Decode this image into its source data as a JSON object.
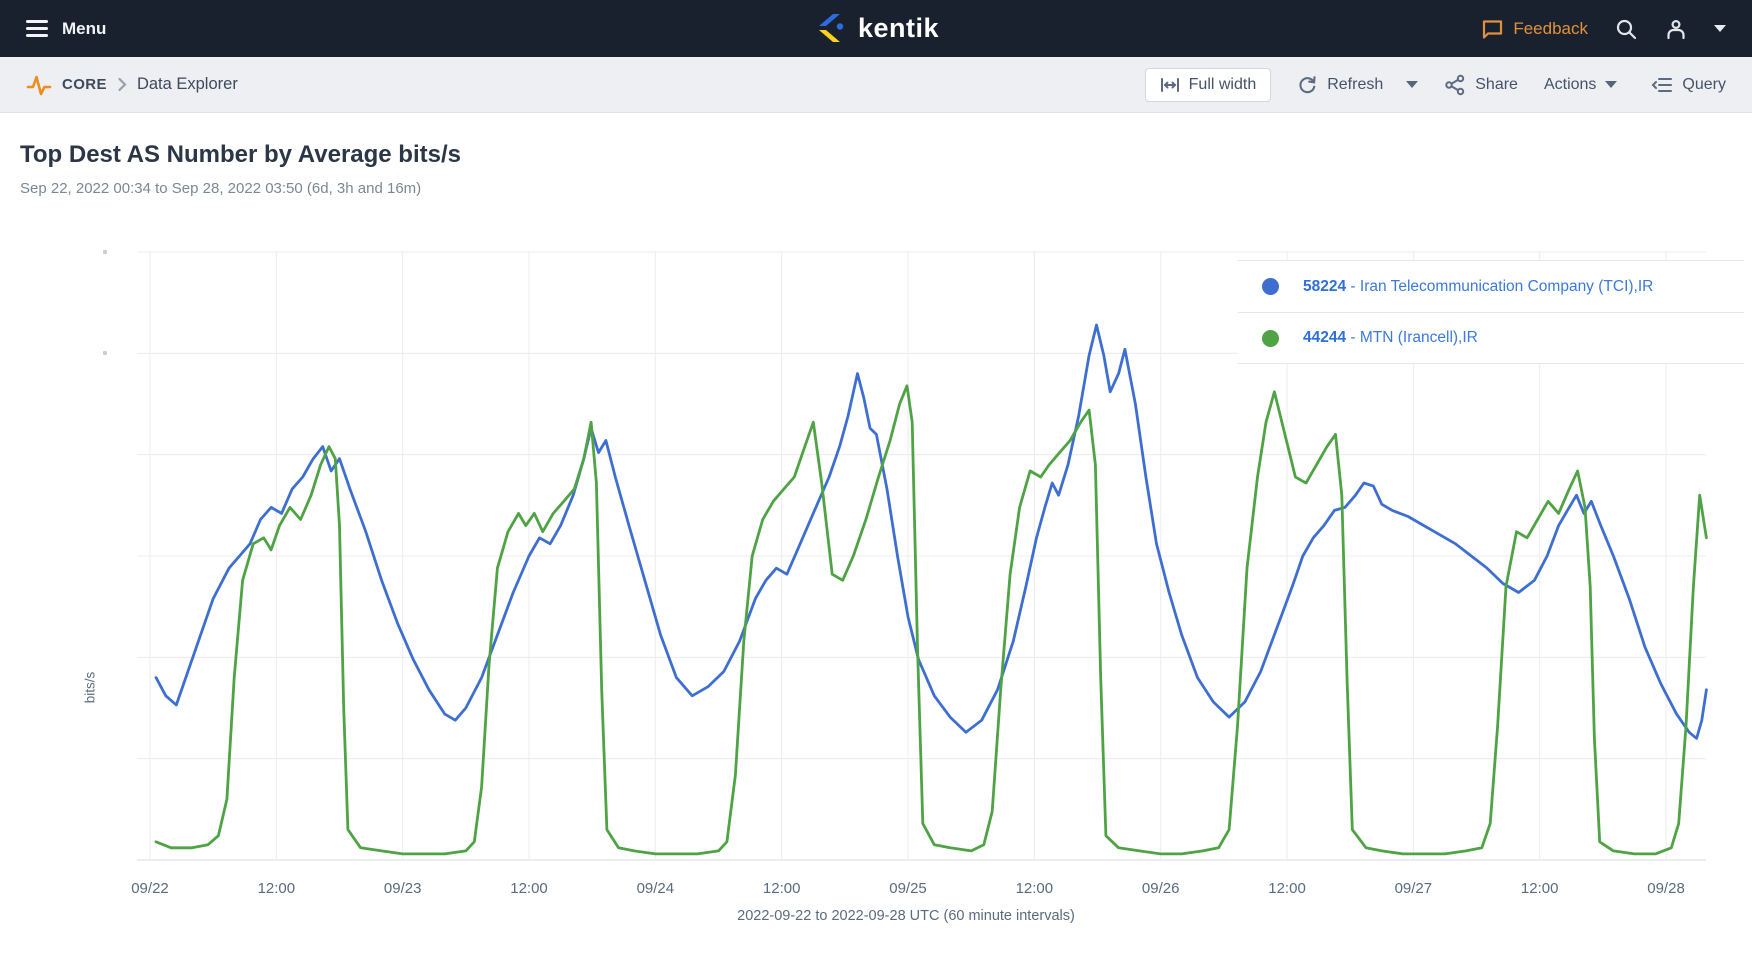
{
  "nav": {
    "menu_label": "Menu",
    "brand": "kentik",
    "feedback_label": "Feedback"
  },
  "toolbar": {
    "breadcrumb_section": "CORE",
    "breadcrumb_page": "Data Explorer",
    "full_width_label": "Full width",
    "refresh_label": "Refresh",
    "share_label": "Share",
    "actions_label": "Actions",
    "query_label": "Query"
  },
  "page": {
    "title": "Top Dest AS Number by Average bits/s",
    "subtitle": "Sep 22, 2022 00:34 to Sep 28, 2022 03:50 (6d, 3h and 16m)"
  },
  "icons": {
    "menu-icon": "hamburger ≡",
    "feedback-bubble-icon": "speech bubble",
    "search-icon": "magnifier",
    "user-icon": "person silhouette",
    "caret-down-icon": "▾",
    "pulse-icon": "orange activity zigzag",
    "chevron-right-icon": "›",
    "full-width-icon": "|↔|",
    "refresh-icon": "circular arrow",
    "share-icon": "share nodes",
    "query-icon": "outdent list lines"
  },
  "colors": {
    "nav_bg": "#1a212e",
    "toolbar_bg": "#edeff2",
    "accent_orange": "#e0913c",
    "pulse_orange": "#ef8c1f",
    "series_blue": "#3e6fd0",
    "series_green": "#4fa345",
    "legend_link_blue": "#3b79df",
    "grid_line": "#ececee",
    "axis_text": "#5a6b7f",
    "logo_blue": "#2d6bdf",
    "logo_yellow": "#ffd21e"
  },
  "chart_data": {
    "type": "line",
    "title": "Top Dest AS Number by Average bits/s",
    "xlabel": "2022-09-22 to 2022-09-28 UTC (60 minute intervals)",
    "ylabel": "bits/s",
    "x_unit": "hours since 2022-09-22 00:00 UTC",
    "x_range": [
      0.57,
      147.83
    ],
    "y_unit": "relative traffic level, percent of chart height (y-axis tick values not legible in source image)",
    "y_range": [
      0,
      100
    ],
    "grid": true,
    "legend_position": "top-right",
    "x_tick_hours": [
      0,
      12,
      24,
      36,
      48,
      60,
      72,
      84,
      96,
      108,
      120,
      132,
      144
    ],
    "x_tick_labels": [
      "09/22",
      "12:00",
      "09/23",
      "12:00",
      "09/24",
      "12:00",
      "09/25",
      "12:00",
      "09/26",
      "12:00",
      "09/27",
      "12:00",
      "09/28"
    ],
    "series": [
      {
        "as_number": "58224",
        "name": "Iran Telecommunication Company (TCI),IR",
        "legend_text": " - Iran Telecommunication Company (TCI),IR",
        "color": "#3e6fd0",
        "points": [
          [
            0.57,
            30
          ],
          [
            1.5,
            27
          ],
          [
            2.5,
            25.5
          ],
          [
            4,
            33
          ],
          [
            6,
            43
          ],
          [
            7.5,
            48
          ],
          [
            8.5,
            50
          ],
          [
            9.5,
            52
          ],
          [
            10.5,
            56
          ],
          [
            11.5,
            58
          ],
          [
            12.5,
            57
          ],
          [
            13.5,
            61
          ],
          [
            14.5,
            63
          ],
          [
            15.5,
            66
          ],
          [
            16.4,
            68
          ],
          [
            17.2,
            64
          ],
          [
            18,
            66
          ],
          [
            19,
            61
          ],
          [
            20.5,
            54
          ],
          [
            22,
            46
          ],
          [
            23.5,
            39
          ],
          [
            25,
            33
          ],
          [
            26.5,
            28
          ],
          [
            28,
            24
          ],
          [
            29,
            23
          ],
          [
            30,
            25
          ],
          [
            31.5,
            30
          ],
          [
            33,
            37
          ],
          [
            34.5,
            44
          ],
          [
            36,
            50
          ],
          [
            37,
            53
          ],
          [
            38,
            52
          ],
          [
            39,
            55
          ],
          [
            40.2,
            60
          ],
          [
            41.2,
            66
          ],
          [
            41.9,
            71
          ],
          [
            42.6,
            67
          ],
          [
            43.3,
            69
          ],
          [
            44.2,
            63
          ],
          [
            45.5,
            55
          ],
          [
            47,
            46
          ],
          [
            48.5,
            37
          ],
          [
            50,
            30
          ],
          [
            51.5,
            27
          ],
          [
            53,
            28.5
          ],
          [
            54.5,
            31
          ],
          [
            56,
            36
          ],
          [
            57.5,
            43
          ],
          [
            58.5,
            46
          ],
          [
            59.5,
            48
          ],
          [
            60.5,
            47
          ],
          [
            61.5,
            51
          ],
          [
            62.5,
            55
          ],
          [
            63.5,
            59
          ],
          [
            64.5,
            63
          ],
          [
            65.5,
            68
          ],
          [
            66.3,
            73
          ],
          [
            67.2,
            80
          ],
          [
            67.8,
            76
          ],
          [
            68.4,
            71
          ],
          [
            69,
            70
          ],
          [
            70,
            61
          ],
          [
            71,
            50
          ],
          [
            72,
            40
          ],
          [
            73,
            33
          ],
          [
            74.5,
            27
          ],
          [
            76,
            23.5
          ],
          [
            77.5,
            21
          ],
          [
            79,
            23
          ],
          [
            80.5,
            28
          ],
          [
            82,
            36
          ],
          [
            83.2,
            45
          ],
          [
            84.2,
            53
          ],
          [
            85,
            58
          ],
          [
            85.7,
            62
          ],
          [
            86.3,
            60
          ],
          [
            87.2,
            65
          ],
          [
            88.2,
            73
          ],
          [
            89.2,
            83
          ],
          [
            89.9,
            88
          ],
          [
            90.6,
            83
          ],
          [
            91.2,
            77
          ],
          [
            92,
            80
          ],
          [
            92.6,
            84
          ],
          [
            93.6,
            75
          ],
          [
            94.6,
            63
          ],
          [
            95.6,
            52
          ],
          [
            96.8,
            44
          ],
          [
            98,
            37
          ],
          [
            99.5,
            30
          ],
          [
            101,
            26
          ],
          [
            102.5,
            23.5
          ],
          [
            104,
            26
          ],
          [
            105.5,
            31
          ],
          [
            107,
            38
          ],
          [
            108.5,
            45
          ],
          [
            109.5,
            50
          ],
          [
            110.5,
            53
          ],
          [
            111.5,
            55
          ],
          [
            112.5,
            57.5
          ],
          [
            113.5,
            58
          ],
          [
            114.5,
            60
          ],
          [
            115.3,
            62
          ],
          [
            116.2,
            61.5
          ],
          [
            117,
            58.5
          ],
          [
            118,
            57.5
          ],
          [
            119.5,
            56.5
          ],
          [
            121,
            55
          ],
          [
            122.5,
            53.5
          ],
          [
            124,
            52
          ],
          [
            125.5,
            50
          ],
          [
            127,
            48
          ],
          [
            128.5,
            45.5
          ],
          [
            130,
            44
          ],
          [
            131.5,
            46
          ],
          [
            132.7,
            50
          ],
          [
            133.8,
            55
          ],
          [
            134.8,
            58
          ],
          [
            135.5,
            60
          ],
          [
            136.2,
            57
          ],
          [
            136.9,
            59
          ],
          [
            137.8,
            55
          ],
          [
            139,
            50
          ],
          [
            140.5,
            43
          ],
          [
            142,
            35
          ],
          [
            143.5,
            29
          ],
          [
            145,
            24
          ],
          [
            146.2,
            21
          ],
          [
            146.9,
            20
          ],
          [
            147.4,
            23
          ],
          [
            147.83,
            28
          ]
        ]
      },
      {
        "as_number": "44244",
        "name": "MTN (Irancell),IR",
        "legend_text": " - MTN (Irancell),IR",
        "color": "#4fa345",
        "points": [
          [
            0.57,
            3
          ],
          [
            2,
            2
          ],
          [
            4,
            2
          ],
          [
            5.5,
            2.5
          ],
          [
            6.5,
            4
          ],
          [
            7.3,
            10
          ],
          [
            8,
            30
          ],
          [
            8.8,
            46
          ],
          [
            9.8,
            52
          ],
          [
            10.8,
            53
          ],
          [
            11.5,
            51
          ],
          [
            12.3,
            55
          ],
          [
            13.3,
            58
          ],
          [
            14.3,
            56
          ],
          [
            15.3,
            60
          ],
          [
            16.2,
            65
          ],
          [
            17,
            68
          ],
          [
            17.6,
            66
          ],
          [
            18,
            55
          ],
          [
            18.4,
            25
          ],
          [
            18.8,
            5
          ],
          [
            20,
            2
          ],
          [
            22,
            1.5
          ],
          [
            24,
            1
          ],
          [
            26,
            1
          ],
          [
            28,
            1
          ],
          [
            30,
            1.5
          ],
          [
            30.8,
            3
          ],
          [
            31.5,
            12
          ],
          [
            32.2,
            32
          ],
          [
            33,
            48
          ],
          [
            34,
            54
          ],
          [
            35,
            57
          ],
          [
            35.7,
            55
          ],
          [
            36.5,
            57
          ],
          [
            37.3,
            54
          ],
          [
            38.3,
            57
          ],
          [
            39.3,
            59
          ],
          [
            40.3,
            61
          ],
          [
            41.2,
            66
          ],
          [
            41.9,
            72
          ],
          [
            42.4,
            62
          ],
          [
            42.9,
            28
          ],
          [
            43.4,
            5
          ],
          [
            44.5,
            2
          ],
          [
            46,
            1.5
          ],
          [
            48,
            1
          ],
          [
            50,
            1
          ],
          [
            52,
            1
          ],
          [
            54,
            1.5
          ],
          [
            54.8,
            3
          ],
          [
            55.6,
            14
          ],
          [
            56.4,
            36
          ],
          [
            57.2,
            50
          ],
          [
            58.2,
            56
          ],
          [
            59.2,
            59
          ],
          [
            60.2,
            61
          ],
          [
            61.2,
            63
          ],
          [
            62.2,
            68
          ],
          [
            63,
            72
          ],
          [
            63.8,
            62
          ],
          [
            64.8,
            47
          ],
          [
            65.8,
            46
          ],
          [
            66.8,
            50
          ],
          [
            68,
            56
          ],
          [
            69.2,
            63
          ],
          [
            70.3,
            69
          ],
          [
            71.2,
            75
          ],
          [
            71.9,
            78
          ],
          [
            72.4,
            72
          ],
          [
            72.9,
            35
          ],
          [
            73.4,
            6
          ],
          [
            74.5,
            2.5
          ],
          [
            76,
            2
          ],
          [
            78,
            1.5
          ],
          [
            79.2,
            2.5
          ],
          [
            80,
            8
          ],
          [
            80.8,
            28
          ],
          [
            81.7,
            47
          ],
          [
            82.6,
            58
          ],
          [
            83.6,
            64
          ],
          [
            84.6,
            63
          ],
          [
            85.4,
            65
          ],
          [
            86.4,
            67
          ],
          [
            87.4,
            69
          ],
          [
            88.4,
            72
          ],
          [
            89.2,
            74
          ],
          [
            89.8,
            65
          ],
          [
            90.3,
            30
          ],
          [
            90.8,
            4
          ],
          [
            92,
            2
          ],
          [
            94,
            1.5
          ],
          [
            96,
            1
          ],
          [
            98,
            1
          ],
          [
            100,
            1.5
          ],
          [
            101.5,
            2
          ],
          [
            102.5,
            5
          ],
          [
            103.3,
            22
          ],
          [
            104.2,
            48
          ],
          [
            105.2,
            63
          ],
          [
            106,
            72
          ],
          [
            106.8,
            77
          ],
          [
            107.8,
            70
          ],
          [
            108.8,
            63
          ],
          [
            109.8,
            62
          ],
          [
            110.8,
            65
          ],
          [
            111.8,
            68
          ],
          [
            112.6,
            70
          ],
          [
            113.2,
            60
          ],
          [
            113.7,
            30
          ],
          [
            114.2,
            5
          ],
          [
            115.5,
            2
          ],
          [
            117,
            1.5
          ],
          [
            119,
            1
          ],
          [
            121,
            1
          ],
          [
            123,
            1
          ],
          [
            125,
            1.5
          ],
          [
            126.5,
            2
          ],
          [
            127.3,
            6
          ],
          [
            128,
            22
          ],
          [
            128.8,
            45
          ],
          [
            129.8,
            54
          ],
          [
            130.8,
            53
          ],
          [
            131.8,
            56
          ],
          [
            132.8,
            59
          ],
          [
            133.8,
            57
          ],
          [
            134.8,
            61
          ],
          [
            135.6,
            64
          ],
          [
            136.3,
            58
          ],
          [
            136.8,
            45
          ],
          [
            137.2,
            20
          ],
          [
            137.7,
            3
          ],
          [
            139,
            1.5
          ],
          [
            141,
            1
          ],
          [
            143,
            1
          ],
          [
            144.5,
            2
          ],
          [
            145.2,
            6
          ],
          [
            145.9,
            22
          ],
          [
            146.6,
            45
          ],
          [
            147.2,
            60
          ],
          [
            147.83,
            53
          ]
        ]
      }
    ]
  }
}
